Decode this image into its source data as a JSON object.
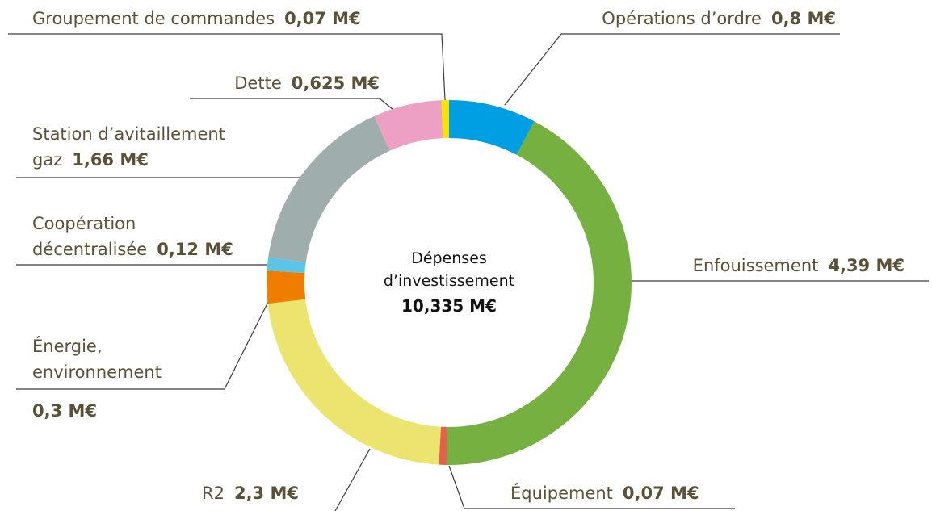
{
  "chart_data": {
    "type": "donut",
    "categories": [
      "Opérations d’ordre",
      "Enfouissement",
      "Équipement",
      "R2",
      "Énergie,\nenvironnement",
      "Coopération\ndécentralisée",
      "Station d’avitaillement\ngaz",
      "Dette",
      "Groupement de commandes"
    ],
    "values": [
      0.8,
      4.39,
      0.07,
      2.3,
      0.3,
      0.12,
      1.66,
      0.625,
      0.07
    ],
    "value_labels": [
      "0,8 M€",
      "4,39 M€",
      "0,07 M€",
      "2,3 M€",
      "0,3 M€",
      "0,12 M€",
      "1,66 M€",
      "0,625 M€",
      "0,07 M€"
    ],
    "colors": [
      "#009fe3",
      "#76b041",
      "#e8604c",
      "#ebe46e",
      "#ee7d00",
      "#5bc5e8",
      "#9fadad",
      "#eea0c4",
      "#f5e400"
    ],
    "center_title": [
      "Dépenses",
      "d’investissement"
    ],
    "center_value": {
      "value": 10.335,
      "label": "10,335 M€"
    }
  }
}
